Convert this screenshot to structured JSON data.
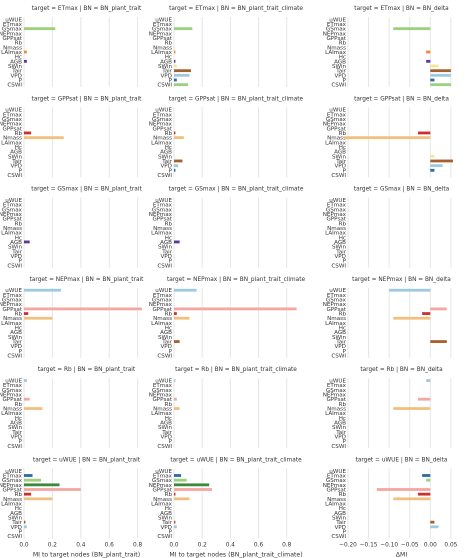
{
  "colors": {
    "grid": "#e5e5e5",
    "axis_text": "#333333",
    "predictors": {
      "uWUE": "#9ecae1",
      "ETmax": "#2b6ba8",
      "GSmax": "#9ccf7e",
      "NEPmax": "#3a8a3a",
      "GPPsat": "#f4a6a0",
      "Rb": "#cc2f2f",
      "Nmass": "#f2c07e",
      "LAImax": "#ee8a2a",
      "Hc": "#cbb5dc",
      "AGB": "#5b3a96",
      "SWin": "#f3e79a",
      "Tair": "#a5602d",
      "VPD": "#9ecae1",
      "P": "#2b6ba8",
      "CSWI": "#9ccf7e"
    }
  },
  "chart_data": {
    "type": "bar",
    "orientation": "horizontal",
    "grid": true,
    "categories": [
      "uWUE",
      "ETmax",
      "GSmax",
      "NEPmax",
      "GPPsat",
      "Rb",
      "Nmass",
      "LAImax",
      "Hc",
      "AGB",
      "SWin",
      "Tair",
      "VPD",
      "P",
      "CSWI"
    ],
    "columns": [
      {
        "key": "trait",
        "bn": "BN_plant_trait",
        "xlim": [
          0,
          0.88
        ],
        "xticks": [
          "0.0",
          "0.2",
          "0.4",
          "0.6",
          "0.8"
        ],
        "xtick_values": [
          0,
          0.2,
          0.4,
          0.6,
          0.8
        ],
        "xlabel": "MI to target nodes (BN_plant_trait)"
      },
      {
        "key": "climate",
        "bn": "BN_plant_trait_climate",
        "xlim": [
          0,
          0.88
        ],
        "xticks": [
          "0.0",
          "0.2",
          "0.4",
          "0.6",
          "0.8"
        ],
        "xtick_values": [
          0,
          0.2,
          0.4,
          0.6,
          0.8
        ],
        "xlabel": "MI to target nodes (BN_plant_trait_climate)"
      },
      {
        "key": "delta",
        "bn": "BN_delta",
        "xlim": [
          -0.2,
          0.06
        ],
        "xticks": [
          "−0.20",
          "−0.15",
          "−0.10",
          "−0.05",
          "0.00",
          "0.05"
        ],
        "xtick_values": [
          -0.2,
          -0.15,
          -0.1,
          -0.05,
          0,
          0.05
        ],
        "xlabel": "ΔMI"
      }
    ],
    "panels": [
      {
        "target": "ETmax",
        "titles": [
          "target = ETmax | BN = BN_plant_trait",
          "target = ETmax | BN = BN_plant_trait_climate",
          "target = ETmax | BN = BN_delta"
        ],
        "trait": [
          0,
          0,
          0.22,
          0,
          0,
          0,
          0,
          0.02,
          0,
          0.02,
          0,
          0,
          0,
          0,
          0
        ],
        "climate": [
          0,
          0,
          0.13,
          0,
          0,
          0,
          0,
          0.01,
          0,
          0.01,
          0.02,
          0.12,
          0.11,
          0.02,
          0.1
        ],
        "delta": [
          0,
          0,
          -0.09,
          0,
          0,
          0,
          0,
          -0.01,
          0,
          -0.01,
          0.02,
          0.05,
          0.05,
          0.01,
          0.05
        ]
      },
      {
        "target": "GPPsat",
        "titles": [
          "target = GPPsat | BN = BN_plant_trait",
          "target = GPPsat | BN = BN_plant_trait_climate",
          "target = GPPsat | BN = BN_delta"
        ],
        "trait": [
          0,
          0,
          0,
          0,
          0,
          0.05,
          0.28,
          0,
          0,
          0,
          0,
          0,
          0,
          0,
          0
        ],
        "climate": [
          0,
          0,
          0,
          0,
          0,
          0.01,
          0.07,
          0,
          0,
          0,
          0,
          0.06,
          0.03,
          0.01,
          0
        ],
        "delta": [
          0,
          0,
          0,
          0,
          0,
          -0.03,
          -0.21,
          0,
          0,
          0,
          0.01,
          0.055,
          0.03,
          0.01,
          0
        ]
      },
      {
        "target": "GSmax",
        "titles": [
          "target = GSmax | BN = BN_plant_trait",
          "target = GSmax | BN = BN_plant_trait_climate",
          "target = GSmax | BN = BN_delta"
        ],
        "trait": [
          0,
          0,
          0,
          0,
          0,
          0,
          0,
          0,
          0,
          0.04,
          0,
          0,
          0,
          0,
          0
        ],
        "climate": [
          0,
          0,
          0,
          0,
          0,
          0,
          0,
          0,
          0,
          0.04,
          0,
          0,
          0,
          0,
          0
        ],
        "delta": [
          0,
          0,
          0,
          0,
          0,
          0,
          0,
          0,
          0,
          0,
          0,
          0,
          0,
          0,
          0
        ]
      },
      {
        "target": "NEPmax",
        "titles": [
          "target = NEPmax | BN = BN_plant_trait",
          "target = NEPmax | BN = BN_plant_trait_climate",
          "target = NEPmax | BN = BN_delta"
        ],
        "trait": [
          0.26,
          0,
          0,
          0,
          0.83,
          0.03,
          0.2,
          0,
          0,
          0,
          0,
          0,
          0,
          0,
          0
        ],
        "climate": [
          0.16,
          0,
          0,
          0,
          0.87,
          0.02,
          0.11,
          0,
          0,
          0,
          0,
          0.04,
          0,
          0,
          0
        ],
        "delta": [
          -0.1,
          0,
          0,
          0,
          0.04,
          -0.02,
          -0.09,
          0,
          0,
          0,
          0,
          0.04,
          0,
          0,
          0
        ]
      },
      {
        "target": "Rb",
        "titles": [
          "target = Rb | BN = BN_plant_trait",
          "target = Rb | BN = BN_plant_trait_climate",
          "target = Rb | BN = BN_delta"
        ],
        "trait": [
          0.02,
          0,
          0,
          0,
          0.04,
          0,
          0.13,
          0,
          0,
          0,
          0,
          0,
          0,
          0,
          0
        ],
        "climate": [
          0.01,
          0,
          0,
          0,
          0.02,
          0,
          0.04,
          0,
          0,
          0,
          0,
          0,
          0,
          0,
          0
        ],
        "delta": [
          -0.01,
          0,
          0,
          0,
          -0.03,
          0,
          -0.09,
          0,
          0,
          0,
          0,
          0,
          0,
          0,
          0
        ]
      },
      {
        "target": "uWUE",
        "titles": [
          "target = uWUE | BN = BN_plant_trait",
          "target = uWUE | BN = BN_plant_trait_climate",
          "target = uWUE | BN = BN_delta"
        ],
        "trait": [
          0,
          0.06,
          0.12,
          0.25,
          0.4,
          0.05,
          0.2,
          0,
          0,
          0,
          0,
          0.01,
          0.02,
          0,
          0
        ],
        "climate": [
          0,
          0.05,
          0.09,
          0.25,
          0.27,
          0.01,
          0.11,
          0,
          0,
          0,
          0,
          0.01,
          0.02,
          0,
          0
        ],
        "delta": [
          0,
          -0.02,
          -0.01,
          0,
          -0.13,
          -0.03,
          -0.09,
          0,
          0,
          0,
          0,
          0.01,
          0.02,
          0,
          0
        ]
      }
    ]
  }
}
